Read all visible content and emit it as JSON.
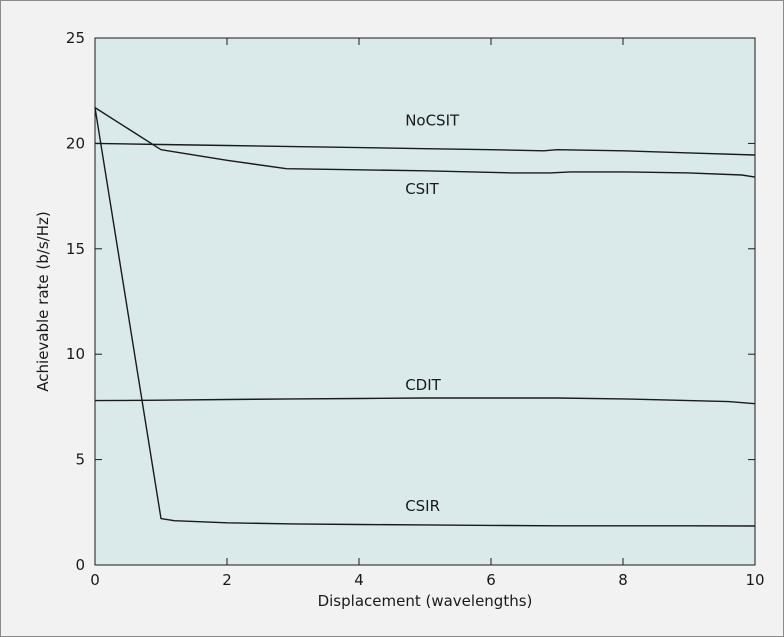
{
  "chart_data": {
    "type": "line",
    "title": "",
    "xlabel": "Displacement (wavelengths)",
    "ylabel": "Achievable rate (b/s/Hz)",
    "xlim": [
      0,
      10
    ],
    "ylim": [
      0,
      25
    ],
    "xticks": [
      0,
      2,
      4,
      6,
      8,
      10
    ],
    "yticks": [
      0,
      5,
      10,
      15,
      20,
      25
    ],
    "grid": false,
    "legend": "none",
    "plot_background": "#daeaea",
    "line_color": "#1a1a1a",
    "series": [
      {
        "name": "NoCSIT",
        "label_at": [
          4.7,
          20.85
        ],
        "points": [
          [
            0,
            20.0
          ],
          [
            1,
            19.95
          ],
          [
            2,
            19.9
          ],
          [
            3,
            19.85
          ],
          [
            4,
            19.8
          ],
          [
            5,
            19.75
          ],
          [
            6,
            19.7
          ],
          [
            6.8,
            19.65
          ],
          [
            7,
            19.7
          ],
          [
            8,
            19.65
          ],
          [
            9,
            19.55
          ],
          [
            10,
            19.45
          ]
        ]
      },
      {
        "name": "CSIT",
        "label_at": [
          4.7,
          17.6
        ],
        "points": [
          [
            0,
            21.7
          ],
          [
            1,
            19.7
          ],
          [
            2,
            19.2
          ],
          [
            2.9,
            18.8
          ],
          [
            4,
            18.75
          ],
          [
            5,
            18.7
          ],
          [
            6.3,
            18.6
          ],
          [
            6.9,
            18.6
          ],
          [
            7.2,
            18.65
          ],
          [
            8,
            18.65
          ],
          [
            9,
            18.6
          ],
          [
            9.8,
            18.5
          ],
          [
            10,
            18.4
          ]
        ]
      },
      {
        "name": "CDIT",
        "label_at": [
          4.7,
          8.3
        ],
        "points": [
          [
            0,
            7.8
          ],
          [
            1,
            7.82
          ],
          [
            2,
            7.85
          ],
          [
            3,
            7.88
          ],
          [
            4,
            7.9
          ],
          [
            5,
            7.92
          ],
          [
            6,
            7.92
          ],
          [
            7,
            7.92
          ],
          [
            8,
            7.88
          ],
          [
            9,
            7.8
          ],
          [
            9.6,
            7.75
          ],
          [
            10,
            7.65
          ]
        ]
      },
      {
        "name": "CSIR",
        "label_at": [
          4.7,
          2.55
        ],
        "points": [
          [
            0,
            21.7
          ],
          [
            1,
            2.2
          ],
          [
            1.2,
            2.1
          ],
          [
            2,
            2.0
          ],
          [
            3,
            1.95
          ],
          [
            4,
            1.92
          ],
          [
            5,
            1.9
          ],
          [
            6,
            1.88
          ],
          [
            7,
            1.86
          ],
          [
            8,
            1.86
          ],
          [
            9,
            1.86
          ],
          [
            10,
            1.85
          ]
        ]
      }
    ]
  }
}
